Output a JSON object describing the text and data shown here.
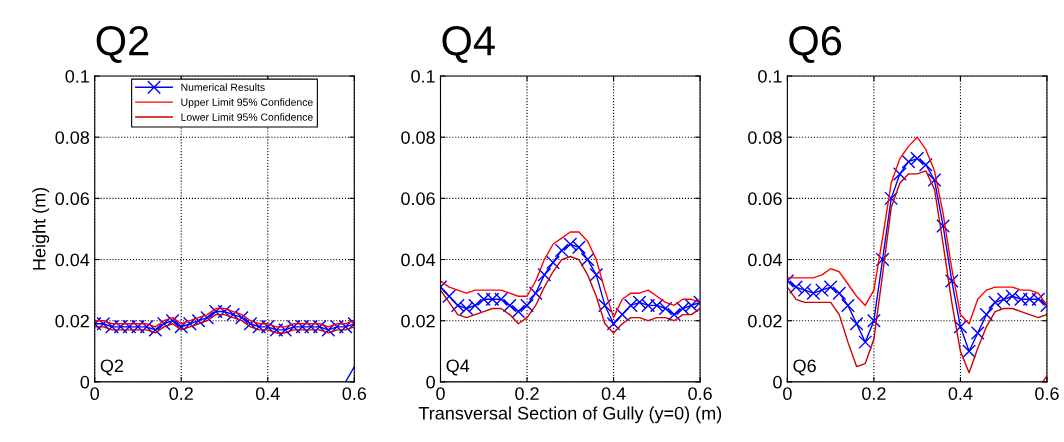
{
  "chart_data": [
    {
      "type": "line",
      "title": "Q2",
      "ylabel": "Height (m)",
      "annotations": [
        "Q2"
      ],
      "legend": "top",
      "grid": true,
      "xlim": [
        0,
        0.6
      ],
      "xticks": [
        0,
        0.2,
        0.4,
        0.6
      ],
      "ylim": [
        0,
        0.1
      ],
      "yticks": [
        0,
        0.02,
        0.04,
        0.06,
        0.08,
        0.1
      ],
      "x": [
        0,
        0.02,
        0.04,
        0.06,
        0.08,
        0.1,
        0.12,
        0.14,
        0.16,
        0.18,
        0.2,
        0.22,
        0.24,
        0.26,
        0.28,
        0.3,
        0.32,
        0.34,
        0.36,
        0.38,
        0.4,
        0.42,
        0.44,
        0.46,
        0.48,
        0.5,
        0.52,
        0.54,
        0.56,
        0.58,
        0.6
      ],
      "series": [
        {
          "name": "Numerical Results",
          "color": "#0000ff",
          "marker": "cross",
          "values": [
            0.019,
            0.019,
            0.018,
            0.018,
            0.018,
            0.018,
            0.018,
            0.017,
            0.019,
            0.02,
            0.018,
            0.019,
            0.02,
            0.021,
            0.023,
            0.023,
            0.022,
            0.021,
            0.019,
            0.018,
            0.018,
            0.017,
            0.017,
            0.018,
            0.018,
            0.018,
            0.018,
            0.017,
            0.018,
            0.018,
            0.019
          ]
        },
        {
          "name": "Upper Limit 95% Confidence",
          "color": "#ff0000",
          "marker": "none",
          "values": [
            0.02,
            0.02,
            0.019,
            0.019,
            0.019,
            0.019,
            0.019,
            0.018,
            0.02,
            0.021,
            0.019,
            0.02,
            0.021,
            0.022,
            0.024,
            0.024,
            0.023,
            0.022,
            0.02,
            0.019,
            0.019,
            0.018,
            0.018,
            0.019,
            0.019,
            0.019,
            0.019,
            0.018,
            0.019,
            0.019,
            0.02
          ]
        },
        {
          "name": "Lower Limit 95% Confidence",
          "color": "#cc0000",
          "marker": "none",
          "values": [
            0.018,
            0.018,
            0.017,
            0.017,
            0.017,
            0.017,
            0.017,
            0.016,
            0.018,
            0.019,
            0.017,
            0.018,
            0.019,
            0.02,
            0.022,
            0.022,
            0.021,
            0.02,
            0.018,
            0.017,
            0.017,
            0.016,
            0.016,
            0.017,
            0.017,
            0.017,
            0.017,
            0.016,
            0.017,
            0.017,
            0.018
          ]
        },
        {
          "color": "#0000ff",
          "marker": "none",
          "x": [
            0.58,
            0.6
          ],
          "values": [
            0,
            0.005
          ]
        }
      ]
    },
    {
      "type": "line",
      "title": "Q4",
      "xlabel": "Transversal Section of Gully (y=0) (m)",
      "annotations": [
        "Q4"
      ],
      "grid": true,
      "xlim": [
        0,
        0.6
      ],
      "xticks": [
        0,
        0.2,
        0.4,
        0.6
      ],
      "ylim": [
        0,
        0.1
      ],
      "yticks": [
        0,
        0.02,
        0.04,
        0.06,
        0.08,
        0.1
      ],
      "x": [
        0,
        0.02,
        0.04,
        0.06,
        0.08,
        0.1,
        0.12,
        0.14,
        0.16,
        0.18,
        0.2,
        0.22,
        0.24,
        0.26,
        0.28,
        0.3,
        0.32,
        0.34,
        0.36,
        0.38,
        0.4,
        0.42,
        0.44,
        0.46,
        0.48,
        0.5,
        0.52,
        0.54,
        0.56,
        0.58,
        0.6
      ],
      "series": [
        {
          "color": "#0000ff",
          "marker": "cross",
          "values": [
            0.031,
            0.028,
            0.025,
            0.024,
            0.025,
            0.027,
            0.027,
            0.027,
            0.025,
            0.023,
            0.025,
            0.029,
            0.035,
            0.039,
            0.043,
            0.045,
            0.044,
            0.04,
            0.035,
            0.025,
            0.019,
            0.022,
            0.025,
            0.026,
            0.025,
            0.025,
            0.024,
            0.022,
            0.024,
            0.025,
            0.026
          ]
        },
        {
          "color": "#ff0000",
          "marker": "none",
          "values": [
            0.033,
            0.031,
            0.03,
            0.029,
            0.03,
            0.03,
            0.03,
            0.03,
            0.029,
            0.028,
            0.028,
            0.033,
            0.04,
            0.045,
            0.047,
            0.049,
            0.049,
            0.046,
            0.04,
            0.03,
            0.021,
            0.027,
            0.029,
            0.029,
            0.03,
            0.028,
            0.026,
            0.025,
            0.027,
            0.027,
            0.026
          ]
        },
        {
          "color": "#cc0000",
          "marker": "none",
          "values": [
            0.03,
            0.026,
            0.022,
            0.021,
            0.022,
            0.023,
            0.024,
            0.024,
            0.022,
            0.019,
            0.021,
            0.025,
            0.031,
            0.036,
            0.04,
            0.041,
            0.04,
            0.035,
            0.028,
            0.019,
            0.016,
            0.019,
            0.021,
            0.021,
            0.02,
            0.021,
            0.021,
            0.02,
            0.022,
            0.022,
            0.024
          ]
        }
      ]
    },
    {
      "type": "line",
      "title": "Q6",
      "annotations": [
        "Q6"
      ],
      "grid": true,
      "xlim": [
        0,
        0.6
      ],
      "xticks": [
        0,
        0.2,
        0.4,
        0.6
      ],
      "ylim": [
        0,
        0.1
      ],
      "yticks": [
        0,
        0.02,
        0.04,
        0.06,
        0.08,
        0.1
      ],
      "x": [
        0,
        0.02,
        0.04,
        0.06,
        0.08,
        0.1,
        0.12,
        0.14,
        0.16,
        0.18,
        0.2,
        0.22,
        0.24,
        0.26,
        0.28,
        0.3,
        0.32,
        0.34,
        0.36,
        0.38,
        0.4,
        0.42,
        0.44,
        0.46,
        0.48,
        0.5,
        0.52,
        0.54,
        0.56,
        0.58,
        0.6
      ],
      "series": [
        {
          "color": "#0000ff",
          "marker": "cross",
          "values": [
            0.033,
            0.031,
            0.03,
            0.029,
            0.03,
            0.031,
            0.029,
            0.025,
            0.019,
            0.013,
            0.02,
            0.04,
            0.06,
            0.068,
            0.072,
            0.073,
            0.071,
            0.066,
            0.051,
            0.033,
            0.018,
            0.01,
            0.016,
            0.022,
            0.026,
            0.027,
            0.028,
            0.027,
            0.027,
            0.027,
            0.025
          ]
        },
        {
          "color": "#ff0000",
          "marker": "none",
          "values": [
            0.034,
            0.034,
            0.034,
            0.034,
            0.035,
            0.037,
            0.036,
            0.032,
            0.028,
            0.025,
            0.03,
            0.047,
            0.065,
            0.073,
            0.077,
            0.08,
            0.076,
            0.069,
            0.055,
            0.037,
            0.022,
            0.019,
            0.027,
            0.03,
            0.031,
            0.031,
            0.031,
            0.03,
            0.03,
            0.029,
            0.025
          ]
        },
        {
          "color": "#cc0000",
          "marker": "none",
          "values": [
            0.031,
            0.027,
            0.026,
            0.026,
            0.026,
            0.026,
            0.022,
            0.013,
            0.005,
            0.006,
            0.014,
            0.035,
            0.057,
            0.065,
            0.068,
            0.068,
            0.069,
            0.063,
            0.045,
            0.026,
            0.01,
            0.003,
            0.011,
            0.018,
            0.023,
            0.024,
            0.024,
            0.023,
            0.022,
            0.021,
            0.022
          ]
        },
        {
          "color": "#ff0000",
          "marker": "none",
          "x": [
            0.59,
            0.6
          ],
          "values": [
            0,
            0.002
          ]
        }
      ]
    }
  ]
}
